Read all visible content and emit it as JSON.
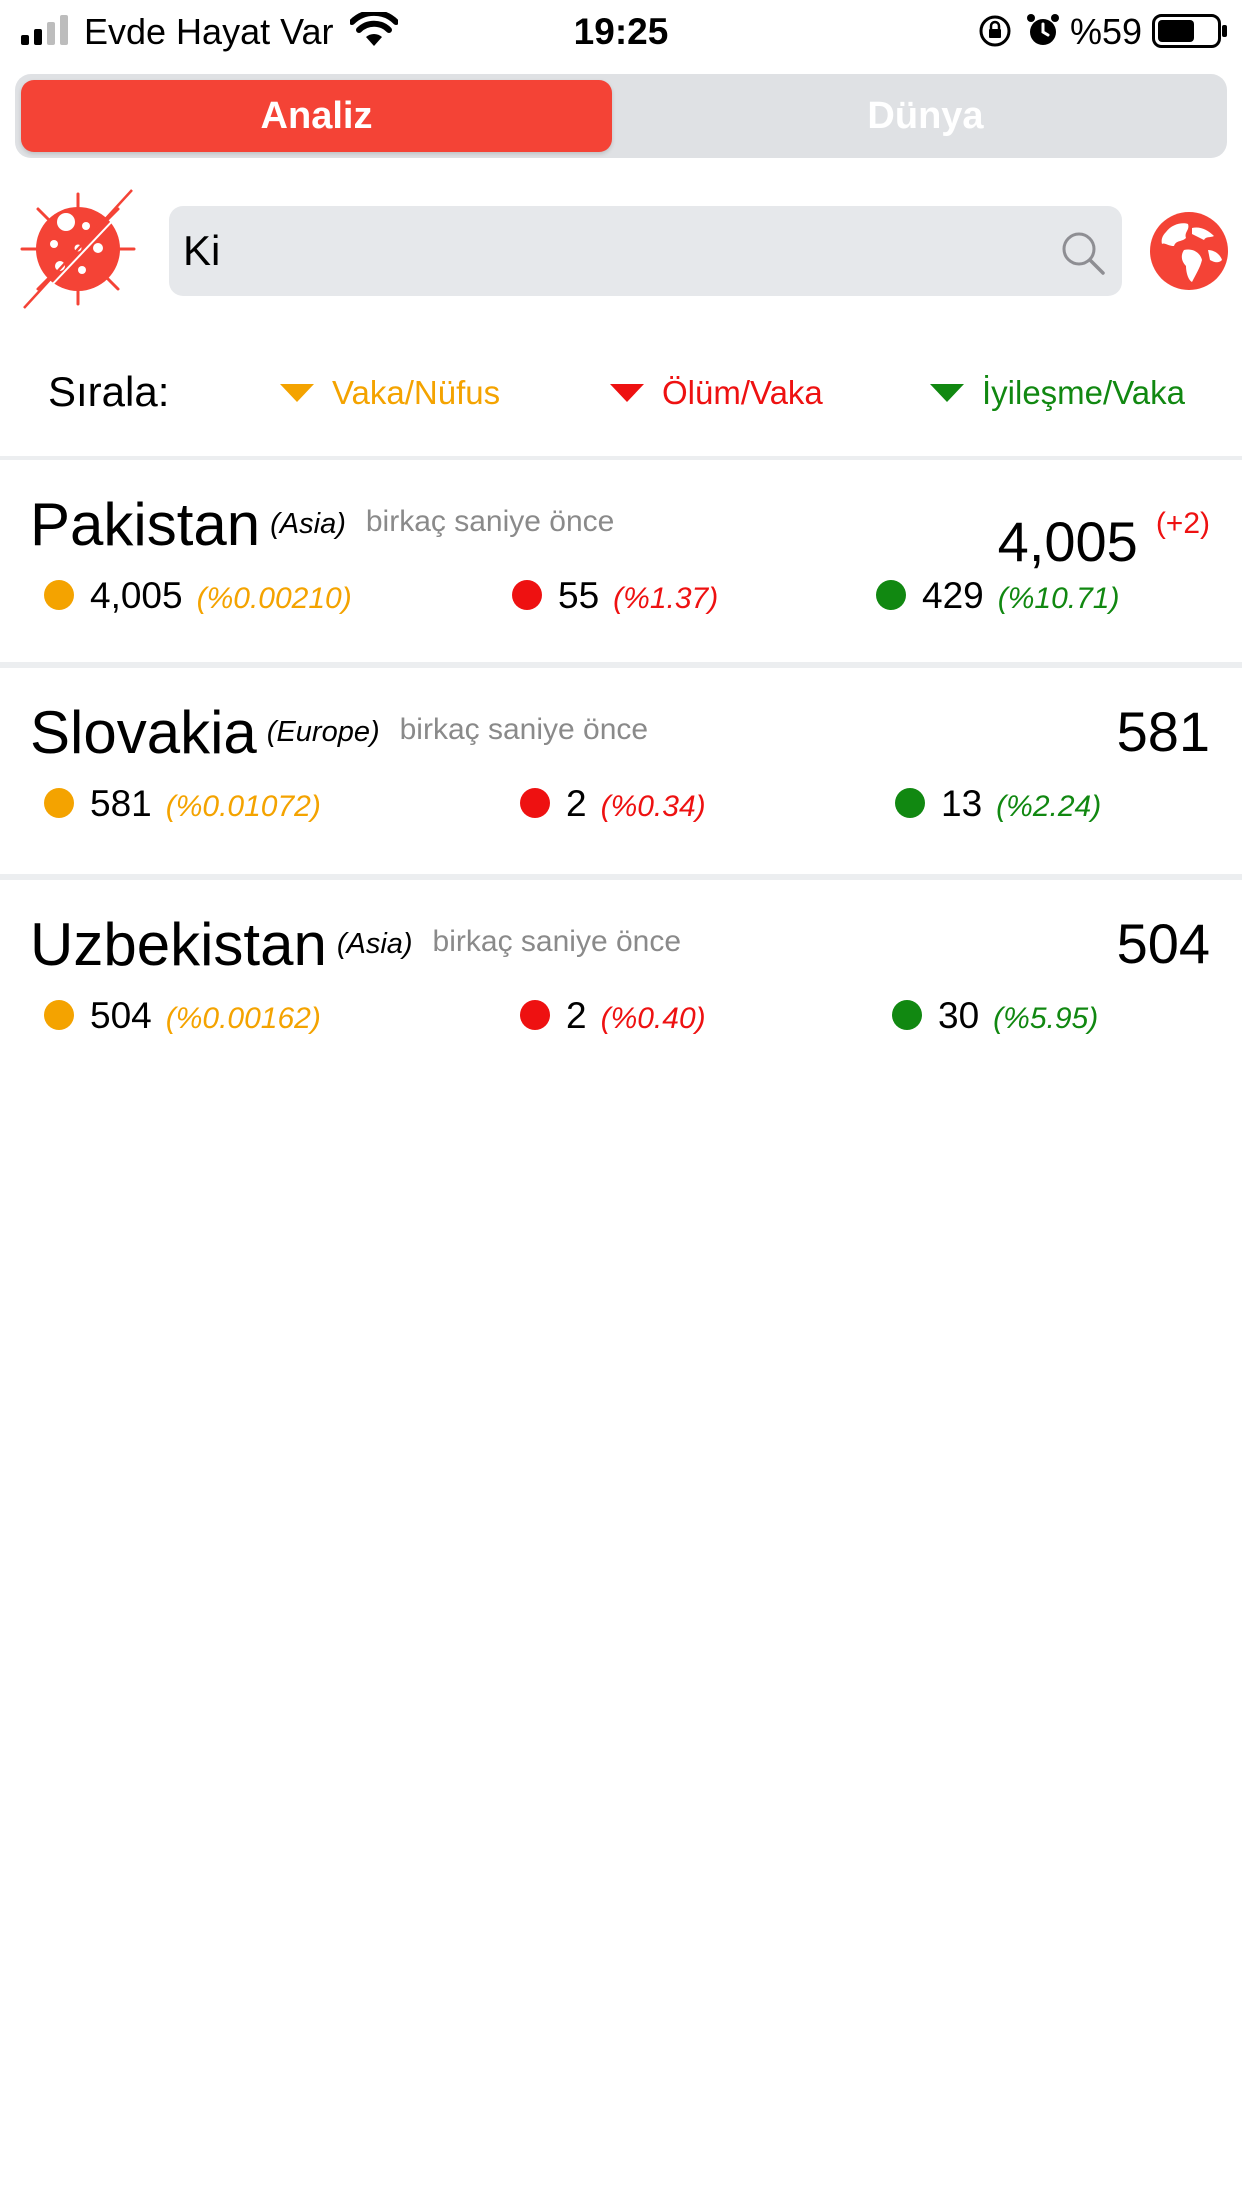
{
  "status_bar": {
    "carrier": "Evde Hayat Var",
    "time": "19:25",
    "battery": "%59"
  },
  "tabs": [
    {
      "label": "Analiz",
      "active": true
    },
    {
      "label": "Dünya",
      "active": false
    }
  ],
  "search": {
    "value": "Ki"
  },
  "sort": {
    "label": "Sırala:",
    "options": [
      "Vaka/Nüfus",
      "Ölüm/Vaka",
      "İyileşme/Vaka"
    ]
  },
  "colors": {
    "accent": "#f44336",
    "cases": "#f4a300",
    "deaths": "#ee1111",
    "recovered": "#118811"
  },
  "countries": [
    {
      "name": "Pakistan",
      "continent": "(Asia)",
      "updated": "birkaç saniye önce",
      "total": "4,005",
      "delta": "(+2)",
      "cases": "4,005",
      "cases_pct": "(%0.00210)",
      "deaths": "55",
      "deaths_pct": "(%1.37)",
      "recovered": "429",
      "recovered_pct": "(%10.71)"
    },
    {
      "name": "Slovakia",
      "continent": "(Europe)",
      "updated": "birkaç saniye önce",
      "total": "581",
      "delta": "",
      "cases": "581",
      "cases_pct": "(%0.01072)",
      "deaths": "2",
      "deaths_pct": "(%0.34)",
      "recovered": "13",
      "recovered_pct": "(%2.24)"
    },
    {
      "name": "Uzbekistan",
      "continent": "(Asia)",
      "updated": "birkaç saniye önce",
      "total": "504",
      "delta": "",
      "cases": "504",
      "cases_pct": "(%0.00162)",
      "deaths": "2",
      "deaths_pct": "(%0.40)",
      "recovered": "30",
      "recovered_pct": "(%5.95)"
    }
  ]
}
